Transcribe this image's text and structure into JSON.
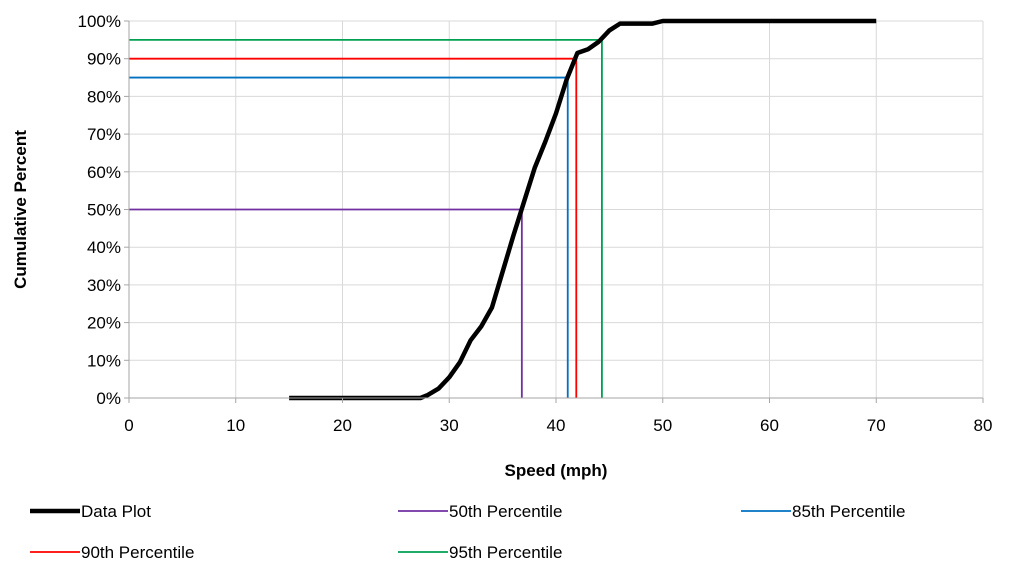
{
  "chart_data": {
    "type": "line",
    "title": "",
    "xlabel": "Speed (mph)",
    "ylabel": "Cumulative Percent",
    "xlim": [
      0,
      80
    ],
    "ylim": [
      0,
      100
    ],
    "xticks": [
      0,
      10,
      20,
      30,
      40,
      50,
      60,
      70,
      80
    ],
    "yticks": [
      0,
      10,
      20,
      30,
      40,
      50,
      60,
      70,
      80,
      90,
      100
    ],
    "xtick_labels": [
      "0",
      "10",
      "20",
      "30",
      "40",
      "50",
      "60",
      "70",
      "80"
    ],
    "ytick_labels": [
      "0%",
      "10%",
      "20%",
      "30%",
      "40%",
      "50%",
      "60%",
      "70%",
      "80%",
      "90%",
      "100%"
    ],
    "grid": true,
    "legend_position": "bottom",
    "series": [
      {
        "name": "Data Plot",
        "color": "#000000",
        "points": [
          [
            15,
            0
          ],
          [
            27.3,
            0
          ],
          [
            28,
            0.8
          ],
          [
            29,
            2.5
          ],
          [
            30,
            5.5
          ],
          [
            31,
            9.5
          ],
          [
            32,
            15.3
          ],
          [
            33,
            19
          ],
          [
            34,
            24
          ],
          [
            35,
            33.5
          ],
          [
            36,
            43
          ],
          [
            37,
            52
          ],
          [
            38,
            61
          ],
          [
            39,
            68
          ],
          [
            40,
            75.5
          ],
          [
            41,
            84.5
          ],
          [
            42,
            91.5
          ],
          [
            43,
            92.5
          ],
          [
            44,
            94.5
          ],
          [
            45,
            97.5
          ],
          [
            46,
            99.3
          ],
          [
            49,
            99.3
          ],
          [
            50,
            100
          ],
          [
            70,
            100
          ]
        ]
      },
      {
        "name": "50th Percentile",
        "color": "#7030a0",
        "x": 36.8,
        "y": 50
      },
      {
        "name": "85th Percentile",
        "color": "#0070c0",
        "x": 41.1,
        "y": 85
      },
      {
        "name": "90th Percentile",
        "color": "#ff0000",
        "x": 41.9,
        "y": 90
      },
      {
        "name": "95th Percentile",
        "color": "#00a050",
        "x": 44.3,
        "y": 95
      }
    ]
  }
}
